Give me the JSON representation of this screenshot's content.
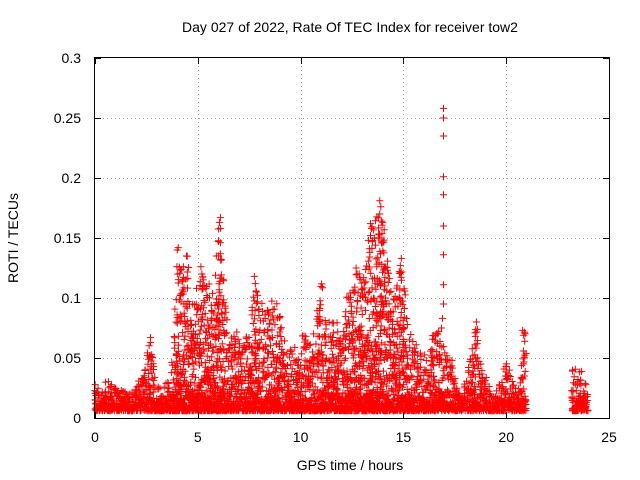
{
  "chart_data": {
    "type": "scatter",
    "title": "Day 027 of 2022, Rate Of TEC Index for receiver tow2",
    "xlabel": "GPS time / hours",
    "ylabel": "ROTI / TECUs",
    "xlim": [
      0,
      25
    ],
    "ylim": [
      0,
      0.3
    ],
    "xticks": [
      0,
      5,
      10,
      15,
      20,
      25
    ],
    "xtick_labels": [
      "0",
      "5",
      "10",
      "15",
      "20",
      "25"
    ],
    "yticks": [
      0,
      0.05,
      0.1,
      0.15,
      0.2,
      0.25,
      0.3
    ],
    "ytick_labels": [
      "0",
      "0.05",
      "0.1",
      "0.15",
      "0.2",
      "0.25",
      "0.3"
    ],
    "grid": true,
    "marker": "+",
    "color": "#ff0000",
    "series": [
      {
        "name": "",
        "envelope": [
          [
            0.0,
            0.028
          ],
          [
            0.3,
            0.024
          ],
          [
            0.6,
            0.033
          ],
          [
            1.0,
            0.025
          ],
          [
            1.5,
            0.022
          ],
          [
            2.0,
            0.025
          ],
          [
            2.5,
            0.052
          ],
          [
            2.7,
            0.066
          ],
          [
            3.0,
            0.03
          ],
          [
            3.5,
            0.03
          ],
          [
            3.8,
            0.05
          ],
          [
            4.0,
            0.142
          ],
          [
            4.3,
            0.125
          ],
          [
            4.5,
            0.136
          ],
          [
            4.8,
            0.09
          ],
          [
            5.0,
            0.12
          ],
          [
            5.3,
            0.126
          ],
          [
            5.8,
            0.11
          ],
          [
            6.0,
            0.165
          ],
          [
            6.2,
            0.14
          ],
          [
            6.5,
            0.06
          ],
          [
            6.8,
            0.08
          ],
          [
            7.2,
            0.06
          ],
          [
            7.8,
            0.115
          ],
          [
            8.2,
            0.09
          ],
          [
            8.5,
            0.1
          ],
          [
            8.9,
            0.095
          ],
          [
            9.3,
            0.055
          ],
          [
            9.7,
            0.065
          ],
          [
            10.2,
            0.07
          ],
          [
            10.6,
            0.065
          ],
          [
            11.0,
            0.115
          ],
          [
            11.3,
            0.08
          ],
          [
            11.7,
            0.09
          ],
          [
            12.0,
            0.07
          ],
          [
            12.3,
            0.11
          ],
          [
            12.7,
            0.12
          ],
          [
            13.2,
            0.13
          ],
          [
            13.5,
            0.16
          ],
          [
            13.9,
            0.18
          ],
          [
            14.2,
            0.14
          ],
          [
            14.5,
            0.1
          ],
          [
            14.9,
            0.13
          ],
          [
            15.3,
            0.08
          ],
          [
            15.7,
            0.06
          ],
          [
            16.2,
            0.05
          ],
          [
            16.5,
            0.08
          ],
          [
            16.8,
            0.07
          ],
          [
            17.0,
            0.06
          ],
          [
            17.4,
            0.05
          ],
          [
            17.7,
            0.03
          ],
          [
            18.0,
            0.028
          ],
          [
            18.5,
            0.08
          ],
          [
            18.8,
            0.04
          ],
          [
            19.2,
            0.03
          ],
          [
            19.6,
            0.025
          ],
          [
            20.0,
            0.048
          ],
          [
            20.4,
            0.03
          ],
          [
            20.7,
            0.035
          ],
          [
            20.9,
            0.073
          ],
          [
            21.0,
            0.035
          ]
        ],
        "envelope2": [
          [
            23.2,
            0.04
          ],
          [
            23.4,
            0.043
          ],
          [
            23.6,
            0.045
          ],
          [
            23.8,
            0.03
          ],
          [
            24.0,
            0.028
          ]
        ],
        "spikes": [
          [
            16.95,
            0.258
          ],
          [
            16.95,
            0.25
          ],
          [
            16.95,
            0.235
          ],
          [
            16.95,
            0.201
          ],
          [
            16.95,
            0.186
          ],
          [
            16.95,
            0.16
          ],
          [
            16.95,
            0.136
          ],
          [
            16.95,
            0.111
          ],
          [
            16.95,
            0.095
          ],
          [
            16.9,
            0.083
          ],
          [
            16.85,
            0.075
          ],
          [
            6.1,
            0.167
          ],
          [
            6.05,
            0.163
          ],
          [
            6.1,
            0.158
          ],
          [
            6.0,
            0.147
          ],
          [
            6.1,
            0.146
          ],
          [
            4.05,
            0.142
          ],
          [
            4.0,
            0.14
          ],
          [
            4.45,
            0.135
          ],
          [
            4.3,
            0.126
          ],
          [
            4.2,
            0.124
          ],
          [
            13.85,
            0.181
          ],
          [
            13.9,
            0.176
          ],
          [
            13.85,
            0.17
          ],
          [
            13.4,
            0.162
          ],
          [
            13.45,
            0.158
          ],
          [
            13.4,
            0.152
          ],
          [
            13.3,
            0.148
          ],
          [
            13.35,
            0.141
          ],
          [
            12.7,
            0.125
          ],
          [
            12.75,
            0.12
          ],
          [
            14.9,
            0.133
          ],
          [
            14.85,
            0.127
          ],
          [
            14.8,
            0.122
          ],
          [
            2.55,
            0.052
          ],
          [
            2.6,
            0.049
          ],
          [
            2.7,
            0.067
          ],
          [
            2.7,
            0.063
          ],
          [
            18.55,
            0.08
          ],
          [
            18.6,
            0.074
          ],
          [
            18.5,
            0.068
          ],
          [
            20.8,
            0.073
          ],
          [
            20.85,
            0.069
          ],
          [
            20.9,
            0.064
          ],
          [
            7.75,
            0.118
          ],
          [
            7.8,
            0.112
          ],
          [
            7.85,
            0.105
          ],
          [
            5.15,
            0.126
          ],
          [
            5.2,
            0.12
          ]
        ]
      }
    ]
  }
}
